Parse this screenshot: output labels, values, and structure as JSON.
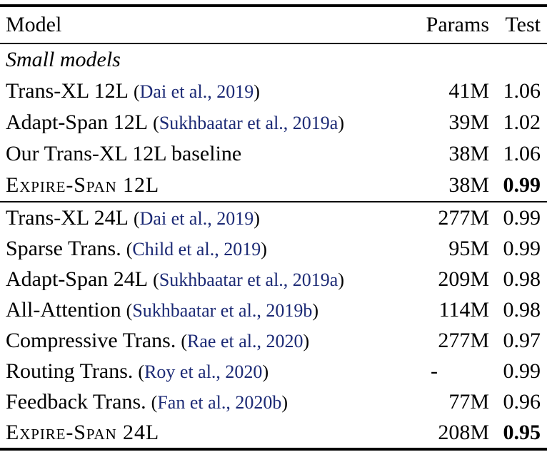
{
  "colors": {
    "background": "#ffffff",
    "text": "#000000",
    "citation": "#1c2a75"
  },
  "table": {
    "header": {
      "model": "Model",
      "params": "Params",
      "test": "Test"
    },
    "sections": [
      {
        "label": "Small models",
        "rows": [
          {
            "name": "Trans-XL 12L",
            "cite": "Dai et al., 2019",
            "params": "41M",
            "test": "1.06",
            "sc": false,
            "bold_test": false
          },
          {
            "name": "Adapt-Span 12L",
            "cite": "Sukhbaatar et al., 2019a",
            "params": "39M",
            "test": "1.02",
            "sc": false,
            "bold_test": false
          },
          {
            "name": "Our Trans-XL 12L baseline",
            "cite": "",
            "params": "38M",
            "test": "1.06",
            "sc": false,
            "bold_test": false
          },
          {
            "name": "Expire-Span 12L",
            "cite": "",
            "params": "38M",
            "test": "0.99",
            "sc": true,
            "bold_test": true
          }
        ]
      },
      {
        "label": "",
        "rows": [
          {
            "name": "Trans-XL 24L",
            "cite": "Dai et al., 2019",
            "params": "277M",
            "test": "0.99",
            "sc": false,
            "bold_test": false
          },
          {
            "name": "Sparse Trans.",
            "cite": "Child et al., 2019",
            "params": "95M",
            "test": "0.99",
            "sc": false,
            "bold_test": false
          },
          {
            "name": "Adapt-Span 24L",
            "cite": "Sukhbaatar et al., 2019a",
            "params": "209M",
            "test": "0.98",
            "sc": false,
            "bold_test": false
          },
          {
            "name": "All-Attention",
            "cite": "Sukhbaatar et al., 2019b",
            "params": "114M",
            "test": "0.98",
            "sc": false,
            "bold_test": false
          },
          {
            "name": "Compressive Trans.",
            "cite": "Rae et al., 2020",
            "params": "277M",
            "test": "0.97",
            "sc": false,
            "bold_test": false
          },
          {
            "name": "Routing Trans.",
            "cite": "Roy et al., 2020",
            "params": "-",
            "test": "0.99",
            "sc": false,
            "bold_test": false
          },
          {
            "name": "Feedback Trans.",
            "cite": "Fan et al., 2020b",
            "params": "77M",
            "test": "0.96",
            "sc": false,
            "bold_test": false
          },
          {
            "name": "Expire-Span 24L",
            "cite": "",
            "params": "208M",
            "test": "0.95",
            "sc": true,
            "bold_test": true
          }
        ]
      }
    ]
  }
}
